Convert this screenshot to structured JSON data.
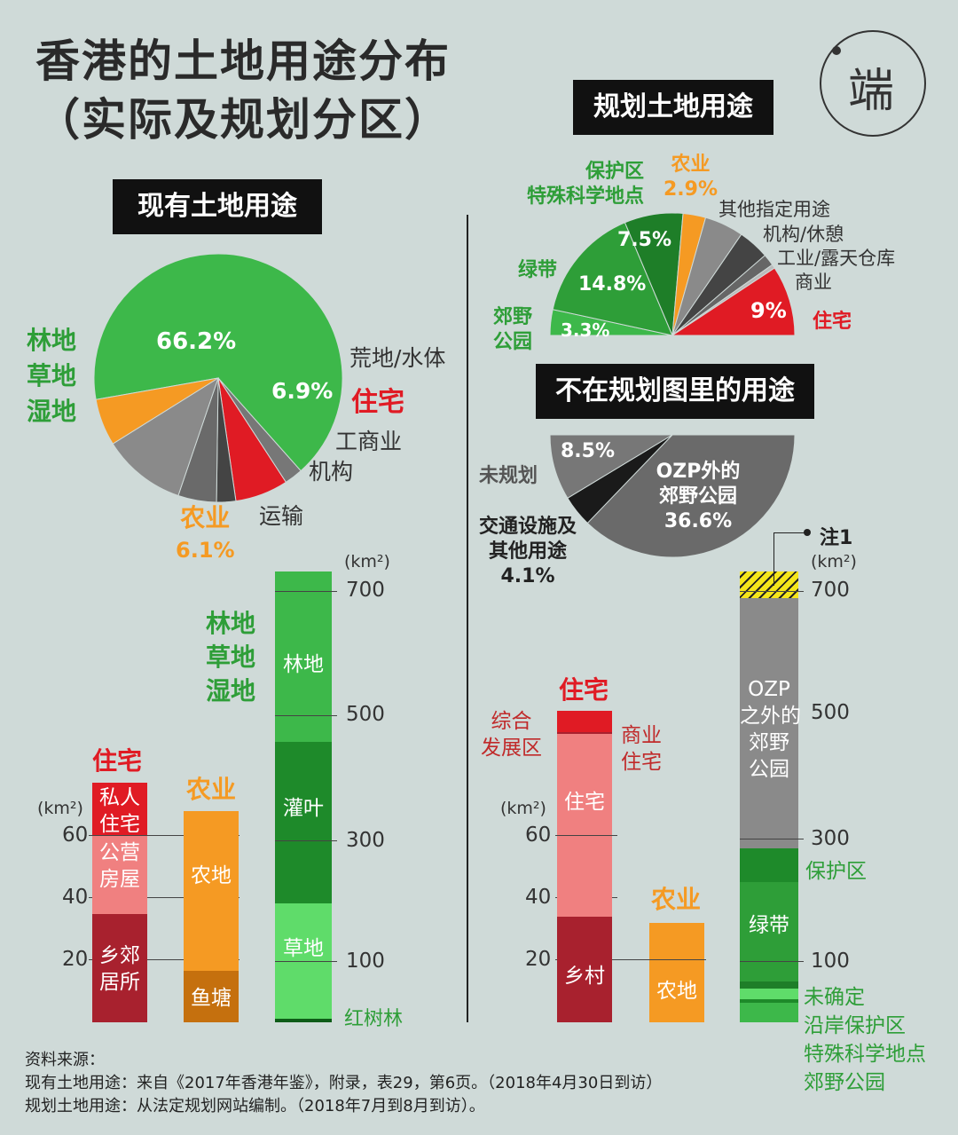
{
  "title": {
    "line1": "香港的土地用途分布",
    "line2": "（实际及规划分区）"
  },
  "logo": {
    "text": "端",
    "icon": "logo-icon"
  },
  "sections": {
    "current": "现有土地用途",
    "planned": "规划土地用途",
    "outside": "不在规划图里的用途"
  },
  "current_pie": {
    "forest_label": [
      "林地",
      "草地",
      "湿地"
    ],
    "forest_value": "66.2%",
    "residential_label": "住宅",
    "residential_value": "6.9%",
    "agri_label": "农业",
    "agri_value": "6.1%",
    "barren": "荒地/水体",
    "commercial": "工商业",
    "institution": "机构",
    "transport": "运输"
  },
  "planned_pie": {
    "conservation": [
      "保护区",
      "特殊科学地点"
    ],
    "conservation_value": "7.5%",
    "agri_label": "农业",
    "agri_value": "2.9%",
    "other_designated": "其他指定用途",
    "institution": "机构/休憩",
    "industrial": "工业/露天仓库",
    "commercial": "商业",
    "greenbelt": "绿带",
    "greenbelt_value": "14.8%",
    "country_park": [
      "郊野",
      "公园"
    ],
    "country_park_value": "3.3%",
    "residential_label": "住宅",
    "residential_value": "9%"
  },
  "outside_pie": {
    "unplanned": "未规划",
    "unplanned_value": "8.5%",
    "ozp": [
      "OZP外的",
      "郊野公园"
    ],
    "ozp_value": "36.6%",
    "transport": [
      "交通设施及",
      "其他用途"
    ],
    "transport_value": "4.1%"
  },
  "left_bars": {
    "unit": "(km²)",
    "ticks_small": [
      "60",
      "40",
      "20"
    ],
    "ticks_large": [
      "700",
      "500",
      "300",
      "100"
    ],
    "residential": {
      "title": "住宅",
      "private": "私人\n住宅",
      "public": "公营\n房屋",
      "rural": "乡郊\n居所"
    },
    "agri": {
      "title": "农业",
      "farmland": "农地",
      "fishpond": "鱼塘"
    },
    "forest": {
      "title": [
        "林地",
        "草地",
        "湿地"
      ],
      "woodland": "林地",
      "shrub": "灌叶",
      "grass": "草地",
      "mangrove": "红树林"
    }
  },
  "right_bars": {
    "unit": "(km²)",
    "ticks_small": [
      "60",
      "40",
      "20"
    ],
    "ticks_large": [
      "700",
      "500",
      "300",
      "100"
    ],
    "note": "注1",
    "residential": {
      "title": "住宅",
      "cdz": "综合\n发展区",
      "commercial_res": "商业\n住宅",
      "res": "住宅",
      "village": "乡村"
    },
    "agri": {
      "title": "农业",
      "farmland": "农地"
    },
    "park": {
      "ozp": "OZP\n之外的\n郊野\n公园",
      "conservation": "保护区",
      "greenbelt": "绿带",
      "undetermined": "未确定",
      "coastal": "沿岸保护区",
      "sssi": "特殊科学地点",
      "country_park": "郊野公园"
    }
  },
  "source": {
    "heading": "资料来源：",
    "line1": "现有土地用途：来自《2017年香港年鉴》，附录，表29，第6页。（2018年4月30日到访）",
    "line2": "规划土地用途：从法定规划网站编制。（2018年7月到8月到访）。"
  },
  "chart_data": [
    {
      "type": "pie",
      "title": "现有土地用途",
      "slices": [
        {
          "name": "林地/草地/湿地",
          "value": 66.2,
          "color": "#3db84a"
        },
        {
          "name": "荒地/水体",
          "value": 2.4,
          "color": "#777777"
        },
        {
          "name": "住宅",
          "value": 6.9,
          "color": "#e01b24"
        },
        {
          "name": "工商业",
          "value": 2.5,
          "color": "#444444"
        },
        {
          "name": "机构",
          "value": 5.0,
          "color": "#6a6a6a"
        },
        {
          "name": "运输",
          "value": 10.9,
          "color": "#8a8a8a"
        },
        {
          "name": "农业",
          "value": 6.1,
          "color": "#f59a23"
        }
      ]
    },
    {
      "type": "pie",
      "title": "规划土地用途",
      "slices": [
        {
          "name": "郊野公园",
          "value": 3.3,
          "color": "#3db84a"
        },
        {
          "name": "绿带",
          "value": 14.8,
          "color": "#2e9e38"
        },
        {
          "name": "保护区/特殊科学地点",
          "value": 7.5,
          "color": "#1e7e28"
        },
        {
          "name": "农业",
          "value": 2.9,
          "color": "#f59a23"
        },
        {
          "name": "其他指定用途",
          "value": 5.0,
          "color": "#8a8a8a"
        },
        {
          "name": "机构/休憩",
          "value": 4.0,
          "color": "#444444"
        },
        {
          "name": "工业/露天仓库",
          "value": 1.5,
          "color": "#666666"
        },
        {
          "name": "商业",
          "value": 0.5,
          "color": "#bbbbbb"
        },
        {
          "name": "住宅",
          "value": 9.0,
          "color": "#e01b24"
        }
      ]
    },
    {
      "type": "pie",
      "title": "不在规划图里的用途",
      "slices": [
        {
          "name": "OZP外的郊野公园",
          "value": 36.6,
          "color": "#6a6a6a"
        },
        {
          "name": "交通设施及其他用途",
          "value": 4.1,
          "color": "#1a1a1a"
        },
        {
          "name": "未规划",
          "value": 8.5,
          "color": "#777777"
        }
      ]
    }
  ]
}
